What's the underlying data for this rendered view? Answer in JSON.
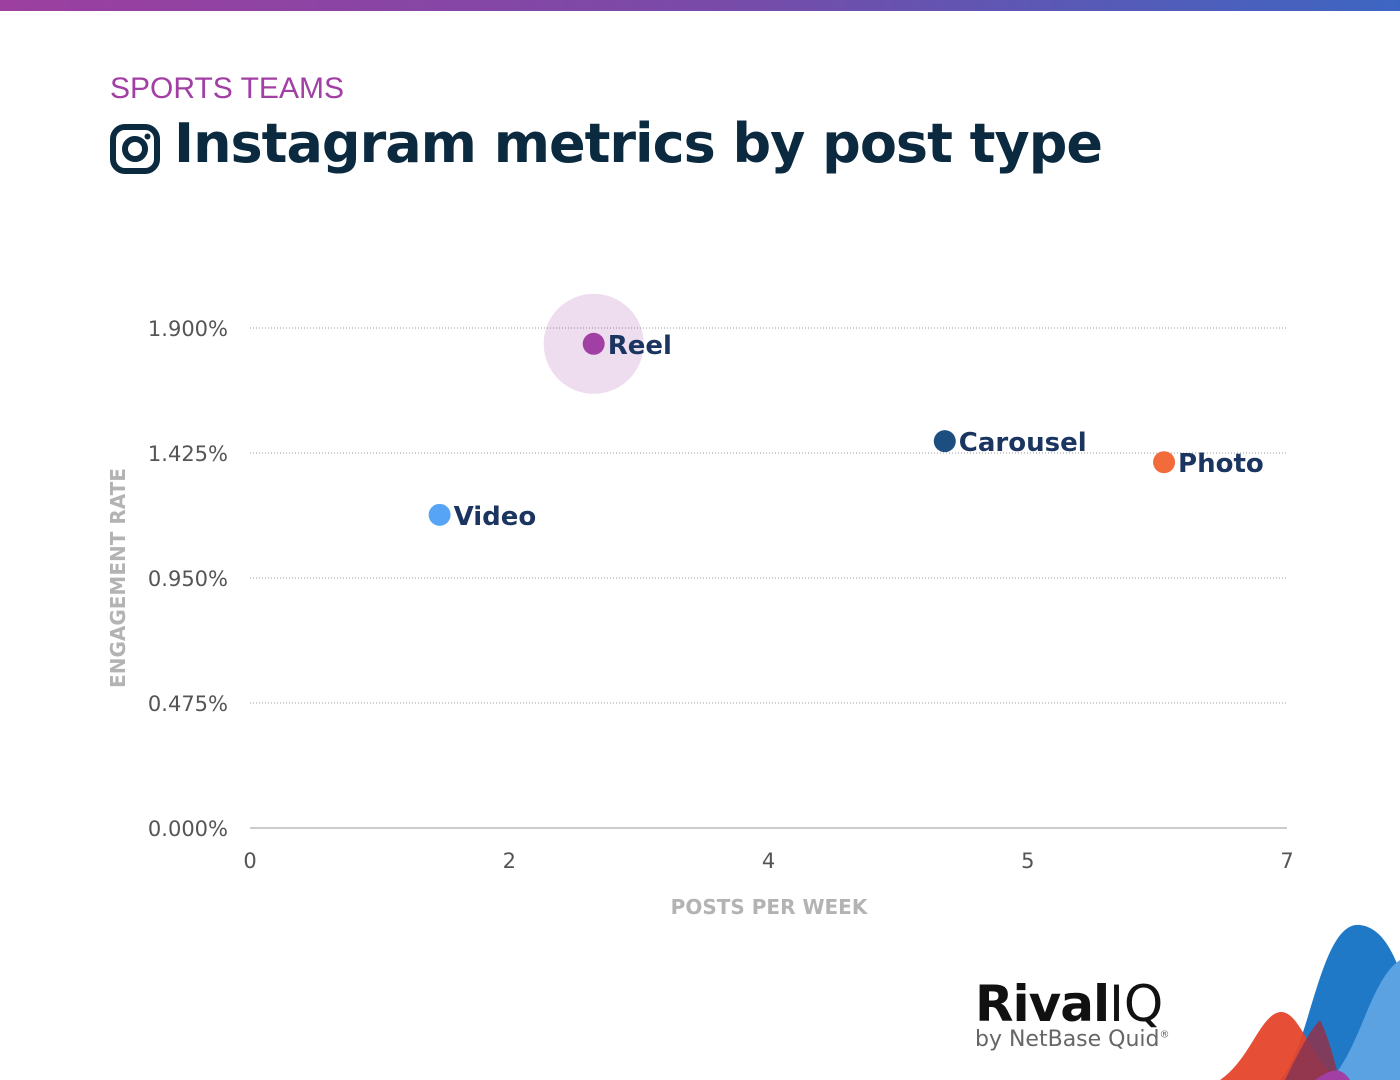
{
  "header": {
    "category": "SPORTS TEAMS",
    "title": "Instagram metrics by post type",
    "icon": "instagram-icon"
  },
  "brand": {
    "name_bold": "Rival",
    "name_light": "IQ",
    "tagline": "by NetBase Quid",
    "registered": "®"
  },
  "chart_data": {
    "type": "scatter",
    "title": "Instagram metrics by post type",
    "xlabel": "POSTS PER WEEK",
    "ylabel": "ENGAGEMENT RATE",
    "xlim": [
      0,
      7
    ],
    "ylim": [
      0,
      1.9
    ],
    "x_ticks": [
      0,
      1.75,
      3.5,
      5.25,
      7
    ],
    "x_tick_labels": [
      "0",
      "2",
      "4",
      "5",
      "7"
    ],
    "y_ticks": [
      0,
      0.475,
      0.95,
      1.425,
      1.9
    ],
    "y_tick_labels": [
      "0.000%",
      "0.475%",
      "0.950%",
      "1.425%",
      "1.900%"
    ],
    "grid": "horizontal dotted",
    "points": [
      {
        "label": "Video",
        "x": 1.28,
        "y": 1.19,
        "color": "#55a4f5"
      },
      {
        "label": "Reel",
        "x": 2.32,
        "y": 1.84,
        "color": "#a23fa5",
        "highlighted": true
      },
      {
        "label": "Carousel",
        "x": 4.69,
        "y": 1.47,
        "color": "#1d4e80"
      },
      {
        "label": "Photo",
        "x": 6.17,
        "y": 1.39,
        "color": "#f26b3a"
      }
    ]
  }
}
